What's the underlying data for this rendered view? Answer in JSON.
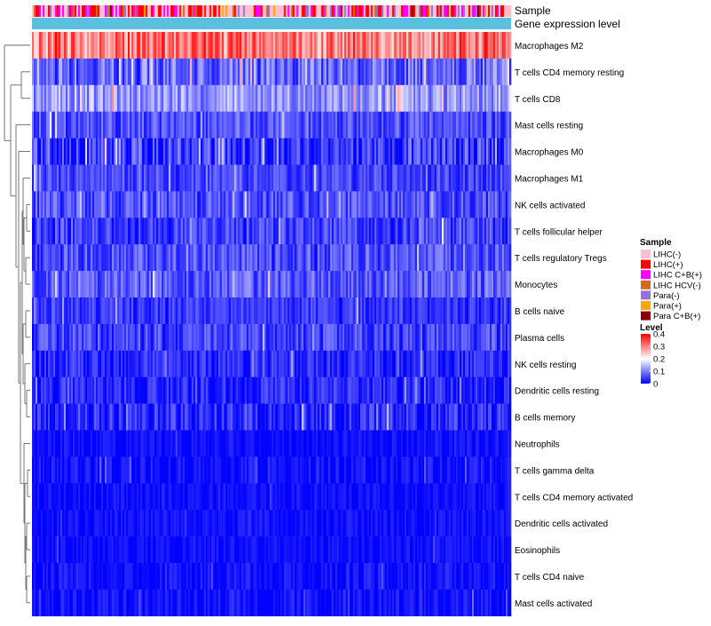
{
  "chart_data": {
    "type": "heatmap",
    "annotation_tracks": [
      "Sample",
      "Gene expression level"
    ],
    "rows": [
      {
        "label": "Macrophages M2",
        "mean": 0.3,
        "spread": 0.08
      },
      {
        "label": "T cells CD4 memory resting",
        "mean": 0.08,
        "spread": 0.07
      },
      {
        "label": "T cells CD8",
        "mean": 0.12,
        "spread": 0.06
      },
      {
        "label": "Mast cells resting",
        "mean": 0.06,
        "spread": 0.05
      },
      {
        "label": "Macrophages M0",
        "mean": 0.04,
        "spread": 0.07
      },
      {
        "label": "Macrophages M1",
        "mean": 0.05,
        "spread": 0.04
      },
      {
        "label": "NK cells activated",
        "mean": 0.06,
        "spread": 0.05
      },
      {
        "label": "T cells follicular helper",
        "mean": 0.05,
        "spread": 0.05
      },
      {
        "label": "T cells regulatory  Tregs",
        "mean": 0.06,
        "spread": 0.05
      },
      {
        "label": "Monocytes",
        "mean": 0.07,
        "spread": 0.05
      },
      {
        "label": "B cells naive",
        "mean": 0.04,
        "spread": 0.04
      },
      {
        "label": "Plasma cells",
        "mean": 0.05,
        "spread": 0.05
      },
      {
        "label": "NK cells resting",
        "mean": 0.03,
        "spread": 0.04
      },
      {
        "label": "Dendritic cells resting",
        "mean": 0.03,
        "spread": 0.04
      },
      {
        "label": "B cells memory",
        "mean": 0.03,
        "spread": 0.05
      },
      {
        "label": "Neutrophils",
        "mean": 0.01,
        "spread": 0.02
      },
      {
        "label": "T cells gamma delta",
        "mean": 0.01,
        "spread": 0.03
      },
      {
        "label": "T cells CD4 memory activated",
        "mean": 0.01,
        "spread": 0.02
      },
      {
        "label": "Dendritic cells activated",
        "mean": 0.01,
        "spread": 0.02
      },
      {
        "label": "Eosinophils",
        "mean": 0.01,
        "spread": 0.02
      },
      {
        "label": "T cells CD4 naive",
        "mean": 0.01,
        "spread": 0.03
      },
      {
        "label": "Mast cells activated",
        "mean": 0.01,
        "spread": 0.03
      }
    ],
    "sample_legend": {
      "title": "Sample",
      "entries": [
        {
          "label": "LIHC(-)",
          "color": "#ffc0cb"
        },
        {
          "label": "LIHC(+)",
          "color": "#ff0000"
        },
        {
          "label": "LIHC C+B(+)",
          "color": "#ff00ff"
        },
        {
          "label": "LIHC HCV(-)",
          "color": "#d2691e"
        },
        {
          "label": "Para(-)",
          "color": "#9370db"
        },
        {
          "label": "Para(+)",
          "color": "#ffa500"
        },
        {
          "label": "Para C+B(+)",
          "color": "#8b0000"
        }
      ]
    },
    "level_legend": {
      "title": "Level",
      "ticks": [
        "0.4",
        "0.3",
        "0.2",
        "0.1",
        "0"
      ],
      "range": [
        0,
        0.4
      ]
    },
    "gene_expression_color": "#5bc0de",
    "color_scale": {
      "low": "#0000ff",
      "mid": "#ffffff",
      "high": "#ff0000"
    }
  }
}
